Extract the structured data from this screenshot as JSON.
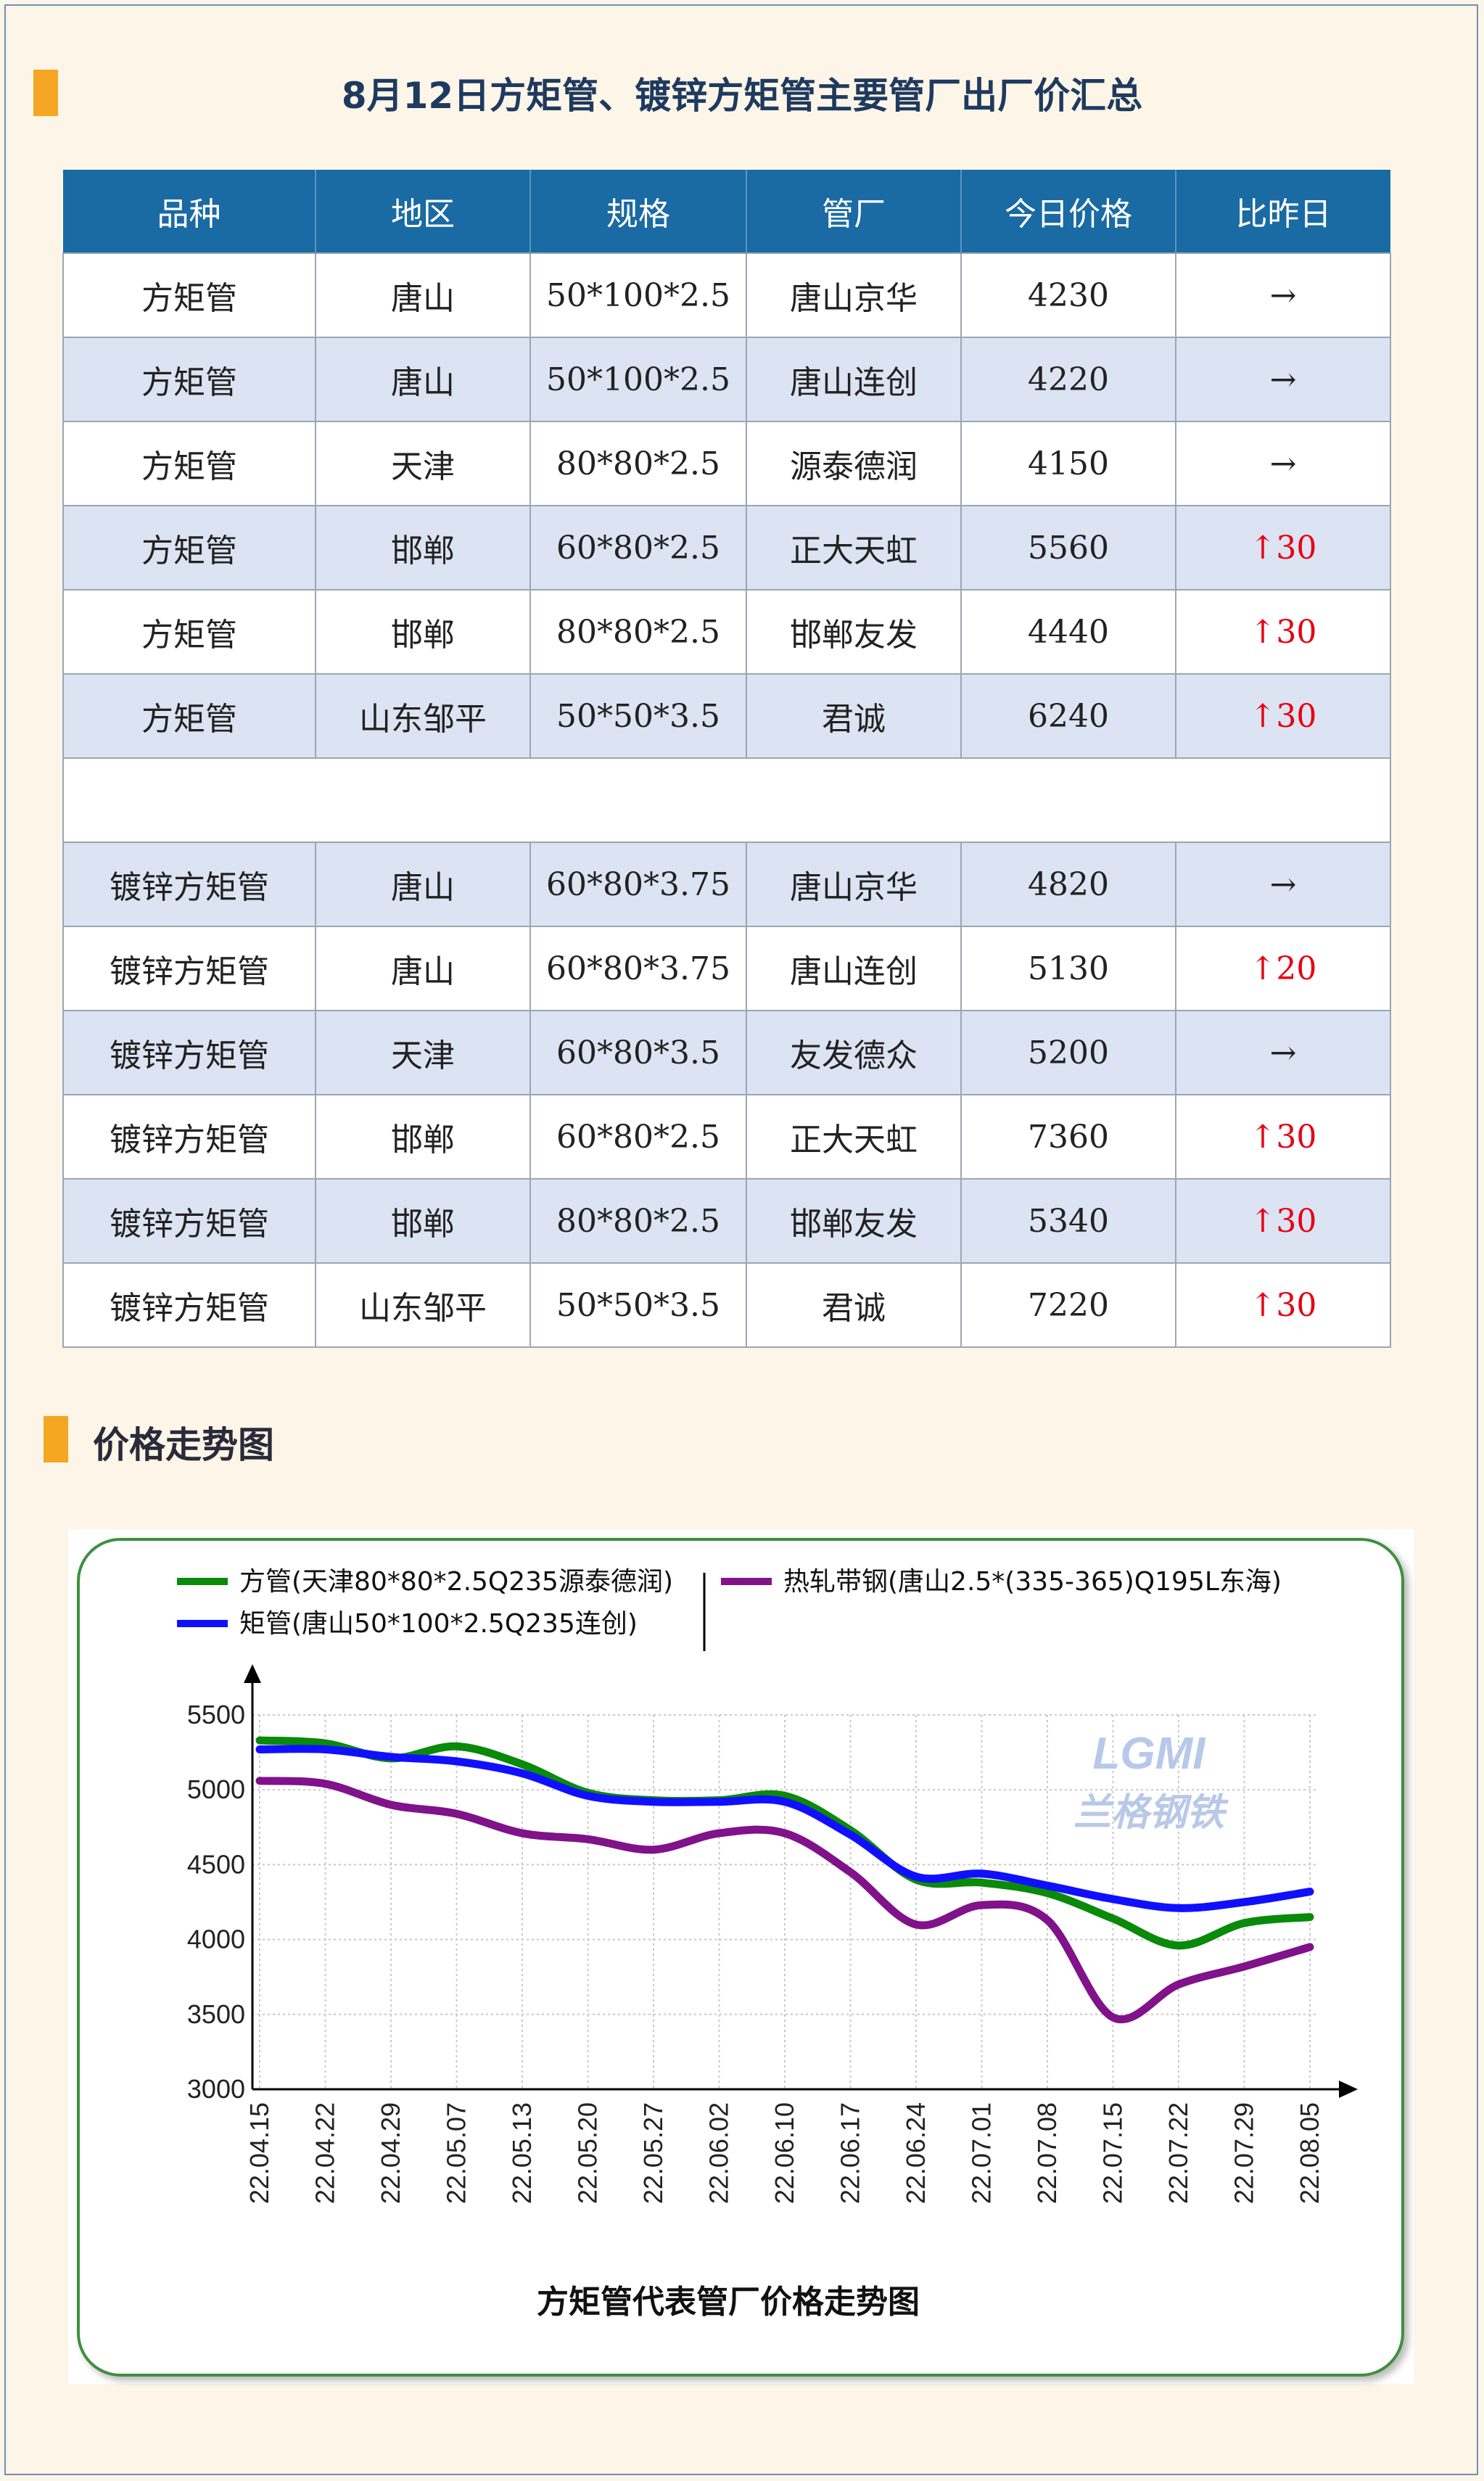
{
  "header": {
    "title": "8月12日方矩管、镀锌方矩管主要管厂出厂价汇总"
  },
  "table": {
    "columns": [
      "品种",
      "地区",
      "规格",
      "管厂",
      "今日价格",
      "比昨日"
    ],
    "rows_group1": [
      {
        "product": "方矩管",
        "region": "唐山",
        "spec": "50*100*2.5",
        "mill": "唐山京华",
        "price": "4230",
        "change": "→",
        "up": false
      },
      {
        "product": "方矩管",
        "region": "唐山",
        "spec": "50*100*2.5",
        "mill": "唐山连创",
        "price": "4220",
        "change": "→",
        "up": false
      },
      {
        "product": "方矩管",
        "region": "天津",
        "spec": "80*80*2.5",
        "mill": "源泰德润",
        "price": "4150",
        "change": "→",
        "up": false
      },
      {
        "product": "方矩管",
        "region": "邯郸",
        "spec": "60*80*2.5",
        "mill": "正大天虹",
        "price": "5560",
        "change": "↑30",
        "up": true
      },
      {
        "product": "方矩管",
        "region": "邯郸",
        "spec": "80*80*2.5",
        "mill": "邯郸友发",
        "price": "4440",
        "change": "↑30",
        "up": true
      },
      {
        "product": "方矩管",
        "region": "山东邹平",
        "spec": "50*50*3.5",
        "mill": "君诚",
        "price": "6240",
        "change": "↑30",
        "up": true
      }
    ],
    "rows_group2": [
      {
        "product": "镀锌方矩管",
        "region": "唐山",
        "spec": "60*80*3.75",
        "mill": "唐山京华",
        "price": "4820",
        "change": "→",
        "up": false
      },
      {
        "product": "镀锌方矩管",
        "region": "唐山",
        "spec": "60*80*3.75",
        "mill": "唐山连创",
        "price": "5130",
        "change": "↑20",
        "up": true
      },
      {
        "product": "镀锌方矩管",
        "region": "天津",
        "spec": "60*80*3.5",
        "mill": "友发德众",
        "price": "5200",
        "change": "→",
        "up": false
      },
      {
        "product": "镀锌方矩管",
        "region": "邯郸",
        "spec": "60*80*2.5",
        "mill": "正大天虹",
        "price": "7360",
        "change": "↑30",
        "up": true
      },
      {
        "product": "镀锌方矩管",
        "region": "邯郸",
        "spec": "80*80*2.5",
        "mill": "邯郸友发",
        "price": "5340",
        "change": "↑30",
        "up": true
      },
      {
        "product": "镀锌方矩管",
        "region": "山东邹平",
        "spec": "50*50*3.5",
        "mill": "君诚",
        "price": "7220",
        "change": "↑30",
        "up": true
      }
    ]
  },
  "trend_section": {
    "title": "价格走势图"
  },
  "chart_data": {
    "type": "line",
    "title": "方矩管代表管厂价格走势图",
    "watermark": {
      "logo": "LGMI",
      "text": "兰格钢铁"
    },
    "ylim": [
      3000,
      5500
    ],
    "yticks": [
      3000,
      3500,
      4000,
      4500,
      5000,
      5500
    ],
    "x": [
      "22.04.15",
      "22.04.22",
      "22.04.29",
      "22.05.07",
      "22.05.13",
      "22.05.20",
      "22.05.27",
      "22.06.02",
      "22.06.10",
      "22.06.17",
      "22.06.24",
      "22.07.01",
      "22.07.08",
      "22.07.15",
      "22.07.22",
      "22.07.29",
      "22.08.05"
    ],
    "grid": true,
    "legend_position": "top",
    "series": [
      {
        "name": "方管(天津80*80*2.5Q235源泰德润)",
        "color": "#0a8a0a",
        "values": [
          5330,
          5310,
          5210,
          5290,
          5170,
          4980,
          4930,
          4930,
          4960,
          4730,
          4400,
          4380,
          4310,
          4140,
          3960,
          4110,
          4150
        ]
      },
      {
        "name": "矩管(唐山50*100*2.5Q235连创)",
        "color": "#1010ff",
        "values": [
          5270,
          5270,
          5220,
          5190,
          5110,
          4960,
          4920,
          4920,
          4920,
          4700,
          4420,
          4440,
          4360,
          4270,
          4210,
          4250,
          4320
        ]
      },
      {
        "name": "热轧带钢(唐山2.5*(335-365)Q195L东海)",
        "color": "#80128a",
        "values": [
          5060,
          5040,
          4900,
          4840,
          4710,
          4670,
          4600,
          4710,
          4710,
          4450,
          4100,
          4230,
          4130,
          3480,
          3700,
          3820,
          3950
        ]
      }
    ]
  }
}
